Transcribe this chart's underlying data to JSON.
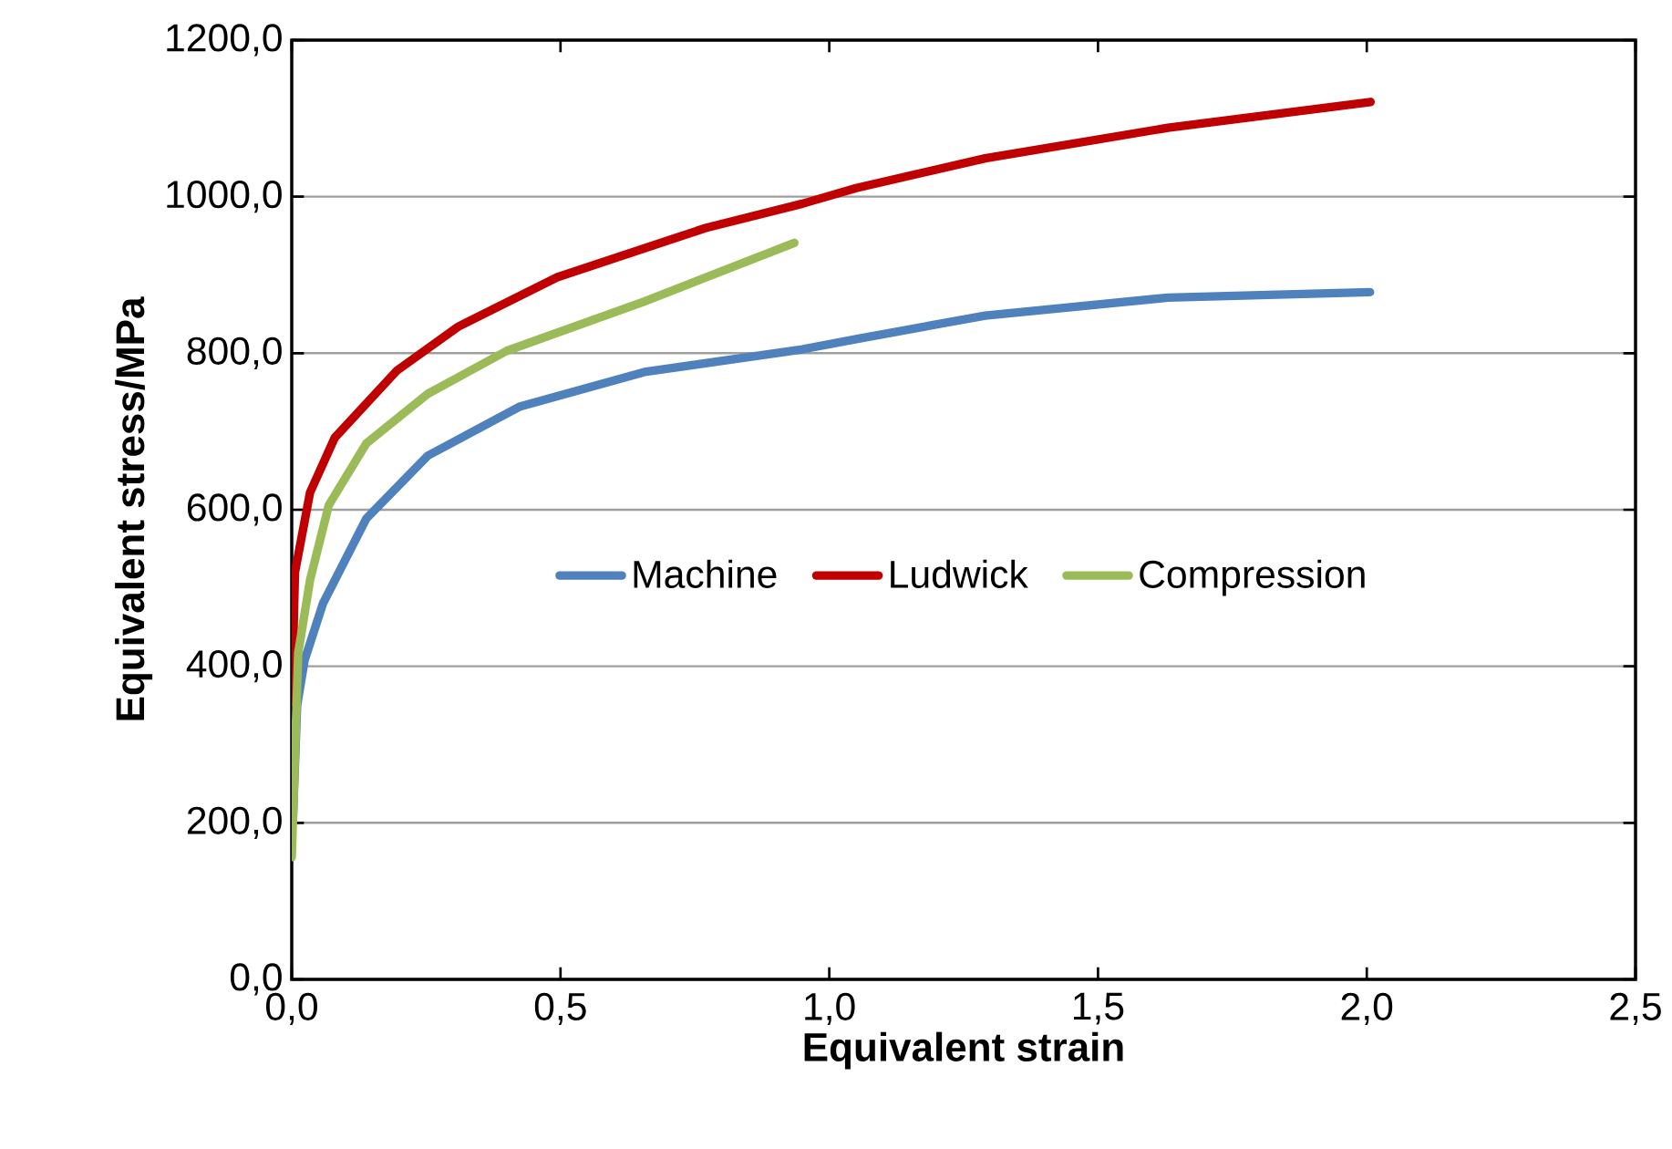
{
  "chart_data": {
    "type": "line",
    "xlabel": "Equivalent strain",
    "ylabel": "Equivalent stress/MPa",
    "xlim": [
      0,
      2.5
    ],
    "ylim": [
      0,
      1200
    ],
    "xticks": [
      {
        "value": 0,
        "label": "0,0"
      },
      {
        "value": 0.5,
        "label": "0,5"
      },
      {
        "value": 1,
        "label": "1,0"
      },
      {
        "value": 1.5,
        "label": "1,5"
      },
      {
        "value": 2,
        "label": "2,0"
      },
      {
        "value": 2.5,
        "label": "2,5"
      }
    ],
    "yticks": [
      {
        "value": 0,
        "label": "0,0"
      },
      {
        "value": 200,
        "label": "200,0"
      },
      {
        "value": 400,
        "label": "400,0"
      },
      {
        "value": 600,
        "label": "600,0"
      },
      {
        "value": 800,
        "label": "800,0"
      },
      {
        "value": 1000,
        "label": "1000,0"
      },
      {
        "value": 1200,
        "label": "1200,0"
      }
    ],
    "grid": "y",
    "legend": "center",
    "marker": "none",
    "line_style": "solid",
    "series": [
      {
        "name": "Machine",
        "color": "#4f81bd",
        "x": [
          0.002,
          0.01,
          0.024,
          0.058,
          0.139,
          0.253,
          0.425,
          0.656,
          0.95,
          1.05,
          1.29,
          1.63,
          2.006
        ],
        "values": [
          200,
          350,
          408,
          480,
          589,
          669,
          732,
          776,
          805,
          818,
          848,
          871,
          878
        ]
      },
      {
        "name": "Ludwick",
        "color": "#c00000",
        "x": [
          0.0,
          0.006,
          0.034,
          0.08,
          0.196,
          0.31,
          0.494,
          0.77,
          0.95,
          1.05,
          1.29,
          1.63,
          2.007
        ],
        "values": [
          354,
          520,
          622,
          692,
          778,
          834,
          897,
          960,
          991,
          1011,
          1049,
          1088,
          1121
        ]
      },
      {
        "name": "Compression",
        "color": "#9bbb59",
        "x": [
          0.0,
          0.012,
          0.034,
          0.069,
          0.139,
          0.253,
          0.4,
          0.656,
          0.935
        ],
        "values": [
          156,
          417,
          510,
          606,
          685,
          748,
          803,
          866,
          941
        ]
      }
    ]
  }
}
